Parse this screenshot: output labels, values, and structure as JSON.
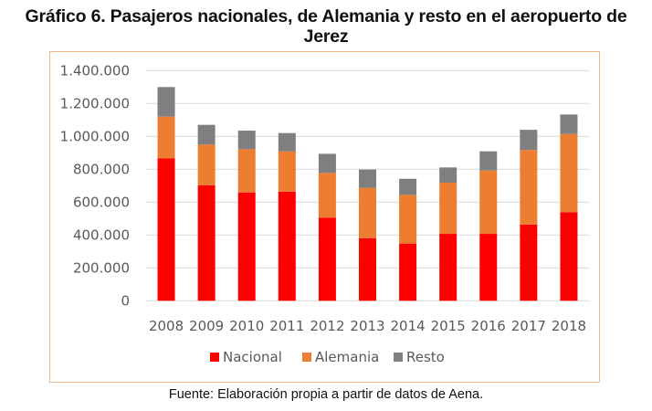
{
  "title_line1": "Gráfico 6. Pasajeros nacionales, de Alemania y resto en el aeropuerto de",
  "title_line2": "Jerez",
  "source": "Fuente:  Elaboración propia a partir de datos de Aena.",
  "chart_data": {
    "type": "bar",
    "stacked": true,
    "title": "Gráfico 6. Pasajeros nacionales, de Alemania y resto en el aeropuerto de Jerez",
    "xlabel": "",
    "ylabel": "",
    "ylim": [
      0,
      1400000
    ],
    "yticks": [
      0,
      200000,
      400000,
      600000,
      800000,
      1000000,
      1200000,
      1400000
    ],
    "ytick_labels": [
      "0",
      "200.000",
      "400.000",
      "600.000",
      "800.000",
      "1.000.000",
      "1.200.000",
      "1.400.000"
    ],
    "grid": true,
    "legend_position": "bottom",
    "categories": [
      "2008",
      "2009",
      "2010",
      "2011",
      "2012",
      "2013",
      "2014",
      "2015",
      "2016",
      "2017",
      "2018"
    ],
    "series": [
      {
        "name": "Nacional",
        "color": "#ff0000",
        "values": [
          867000,
          703000,
          659000,
          664000,
          506000,
          381000,
          348000,
          407000,
          407000,
          464000,
          539000
        ]
      },
      {
        "name": "Alemania",
        "color": "#ed7d31",
        "values": [
          253000,
          247000,
          263000,
          245000,
          272000,
          306000,
          296000,
          311000,
          385000,
          453000,
          475000
        ]
      },
      {
        "name": "Resto",
        "color": "#7f7f7f",
        "values": [
          180000,
          120000,
          113000,
          111000,
          116000,
          111000,
          98000,
          93000,
          117000,
          123000,
          119000
        ]
      }
    ]
  }
}
